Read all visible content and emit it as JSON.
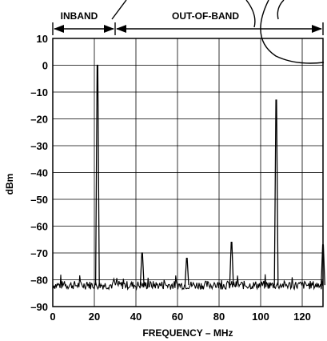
{
  "chart_data": {
    "type": "line",
    "title": "",
    "xlabel": "FREQUENCY – MHz",
    "ylabel": "dBm",
    "xlim": [
      0,
      130
    ],
    "ylim": [
      -90,
      10
    ],
    "xticks": [
      0,
      20,
      40,
      60,
      80,
      100,
      120
    ],
    "xtick_labels": [
      "0",
      "20",
      "40",
      "60",
      "80",
      "100",
      "120"
    ],
    "yticks": [
      10,
      0,
      -10,
      -20,
      -30,
      -40,
      -50,
      -60,
      -70,
      -80,
      -90
    ],
    "ytick_labels": [
      "10",
      "0",
      "–10",
      "–20",
      "–30",
      "–40",
      "–50",
      "–60",
      "–70",
      "–80",
      "–90"
    ],
    "grid": true,
    "noise_floor": -82,
    "peaks": [
      {
        "x": 21.5,
        "y": 0
      },
      {
        "x": 43,
        "y": -70
      },
      {
        "x": 64.5,
        "y": -72
      },
      {
        "x": 86,
        "y": -66
      },
      {
        "x": 107.5,
        "y": -13
      },
      {
        "x": 130,
        "y": -67
      }
    ],
    "bands": [
      {
        "label": "INBAND",
        "x_range": [
          0,
          30
        ]
      },
      {
        "label": "OUT-OF-BAND",
        "x_range": [
          30,
          130
        ]
      }
    ]
  }
}
